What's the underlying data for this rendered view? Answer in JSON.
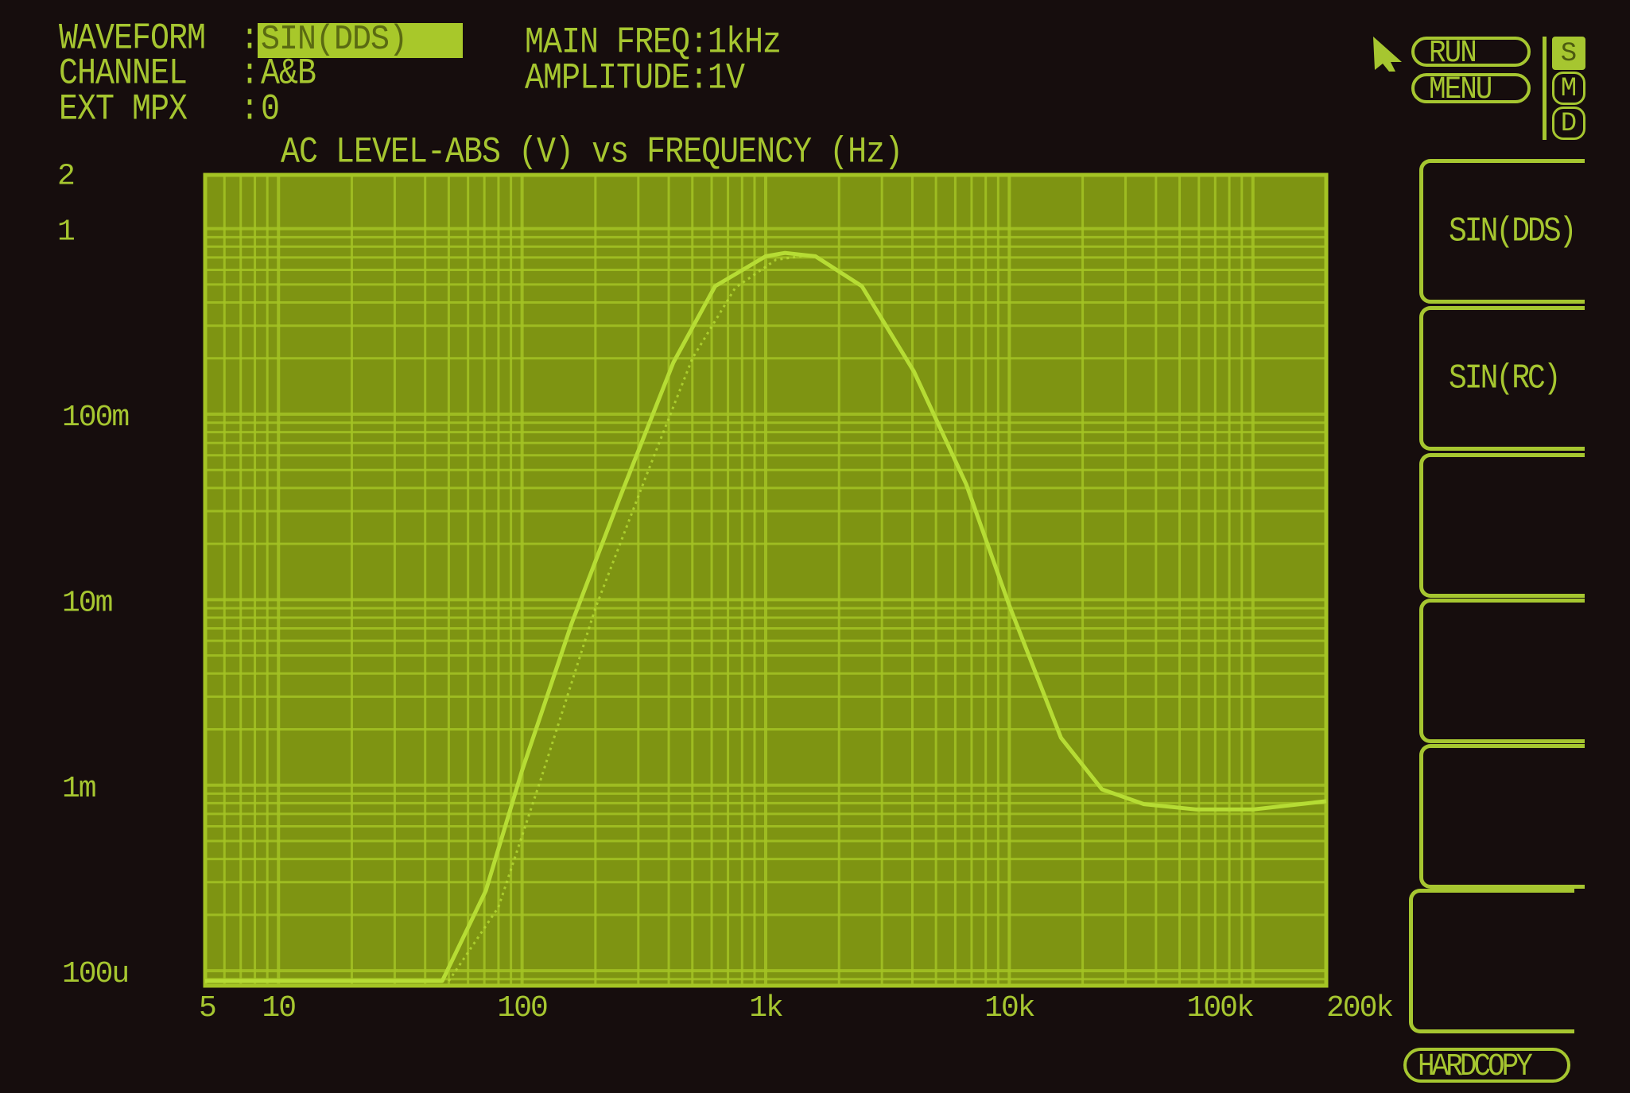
{
  "colors": {
    "screen_bg": "#160d0d",
    "phosphor": "#a6c630",
    "plot_bg": "#7e9412",
    "grid": "#a4c424",
    "trace": "#b6dc34"
  },
  "settings": {
    "waveform_label": "WAVEFORM",
    "waveform_value": "SIN(DDS)",
    "channel_label": "CHANNEL",
    "channel_value": "A&B",
    "ext_mpx_label": "EXT MPX",
    "ext_mpx_value": "0",
    "colon": ":",
    "main_freq": "MAIN FREQ:1kHz",
    "amplitude": "AMPLITUDE:1V"
  },
  "controls": {
    "run": "RUN",
    "menu": "MENU",
    "mode_s": "S",
    "mode_m": "M",
    "mode_d": "D",
    "hardcopy": "HARDCOPY",
    "cursor_icon": "arrow-cursor"
  },
  "softkeys": [
    {
      "label": "SIN(DDS)"
    },
    {
      "label": "SIN(RC)"
    },
    {
      "label": ""
    },
    {
      "label": ""
    },
    {
      "label": ""
    },
    {
      "label": ""
    }
  ],
  "chart_data": {
    "type": "line",
    "title": "AC LEVEL-ABS (V) vs FREQUENCY (Hz)",
    "x_scale": "log",
    "y_scale": "log",
    "grid": true,
    "xlim": [
      5,
      200000
    ],
    "ylim": [
      8.3e-05,
      1.95
    ],
    "x_ticks": [
      {
        "v": 5,
        "label": "5"
      },
      {
        "v": 10,
        "label": "10"
      },
      {
        "v": 100,
        "label": "100"
      },
      {
        "v": 1000,
        "label": "1k"
      },
      {
        "v": 10000,
        "label": "10k"
      },
      {
        "v": 100000,
        "label": "100k"
      },
      {
        "v": 200000,
        "label": "200k"
      }
    ],
    "y_ticks": [
      {
        "v": 2,
        "label": "2"
      },
      {
        "v": 1,
        "label": "1"
      },
      {
        "v": 0.1,
        "label": "100m"
      },
      {
        "v": 0.01,
        "label": "10m"
      },
      {
        "v": 0.001,
        "label": "1m"
      },
      {
        "v": 0.0001,
        "label": "100u"
      }
    ],
    "series": [
      {
        "style": "solid",
        "points": [
          [
            5,
            8.8e-05
          ],
          [
            20,
            8.8e-05
          ],
          [
            47,
            8.8e-05
          ],
          [
            71,
            0.00027
          ],
          [
            100,
            0.0012
          ],
          [
            160,
            0.0075
          ],
          [
            255,
            0.037
          ],
          [
            418,
            0.19
          ],
          [
            620,
            0.49
          ],
          [
            1000,
            0.71
          ],
          [
            1200,
            0.74
          ],
          [
            1600,
            0.71
          ],
          [
            2480,
            0.49
          ],
          [
            4060,
            0.17
          ],
          [
            6650,
            0.042
          ],
          [
            10000,
            0.0093
          ],
          [
            16300,
            0.0018
          ],
          [
            24000,
            0.00095
          ],
          [
            35700,
            0.00079
          ],
          [
            58600,
            0.00074
          ],
          [
            100000,
            0.00074
          ],
          [
            200000,
            0.00082
          ]
        ]
      },
      {
        "style": "dotted",
        "points": [
          [
            50,
            8.8e-05
          ],
          [
            80,
            0.00022
          ],
          [
            120,
            0.0011
          ],
          [
            200,
            0.009
          ],
          [
            320,
            0.045
          ],
          [
            500,
            0.2
          ],
          [
            750,
            0.48
          ],
          [
            1100,
            0.68
          ],
          [
            1500,
            0.72
          ]
        ]
      }
    ]
  }
}
